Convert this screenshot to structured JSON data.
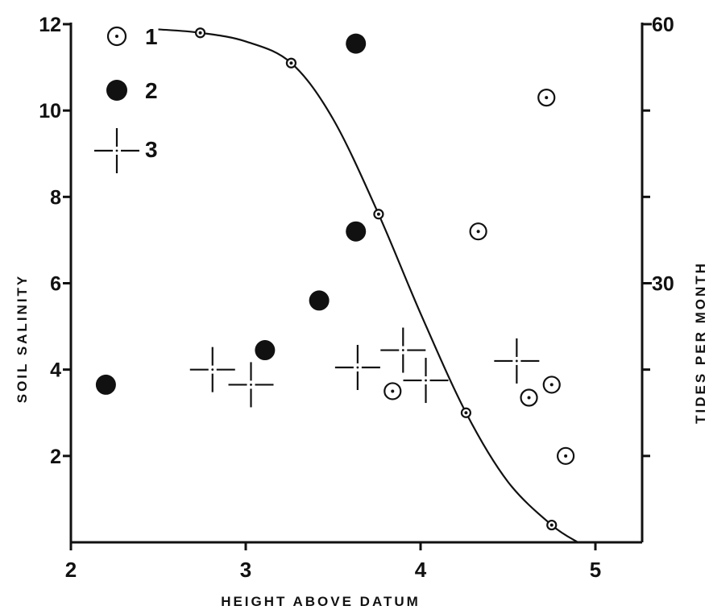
{
  "chart_data": {
    "type": "scatter",
    "xlabel": "HEIGHT ABOVE DATUM",
    "ylabel": "SOIL SALINITY",
    "y2label": "TIDES PER MONTH",
    "xlim": [
      2,
      5.25
    ],
    "ylim": [
      0,
      12
    ],
    "y2lim": [
      0,
      60
    ],
    "x_ticks": [
      2,
      3,
      4,
      5
    ],
    "y_ticks": [
      2,
      4,
      6,
      8,
      10,
      12
    ],
    "y2_ticks": [
      30,
      60
    ],
    "y2_minor_ticks": [
      10,
      20,
      40,
      50
    ],
    "grid": false,
    "legend_position": "top-left",
    "series": [
      {
        "name": "1",
        "marker": "circle-dot",
        "points": [
          [
            3.84,
            3.5
          ],
          [
            4.33,
            7.2
          ],
          [
            4.62,
            3.35
          ],
          [
            4.72,
            10.3
          ],
          [
            4.75,
            3.65
          ],
          [
            4.83,
            2.0
          ]
        ]
      },
      {
        "name": "2",
        "marker": "filled-circle",
        "points": [
          [
            2.2,
            3.65
          ],
          [
            3.11,
            4.45
          ],
          [
            3.42,
            5.6
          ],
          [
            3.63,
            7.2
          ],
          [
            3.63,
            11.55
          ]
        ]
      },
      {
        "name": "3",
        "marker": "broken-cross",
        "points": [
          [
            2.81,
            4.0
          ],
          [
            3.03,
            3.65
          ],
          [
            3.64,
            4.05
          ],
          [
            3.9,
            4.45
          ],
          [
            4.03,
            3.75
          ],
          [
            4.55,
            4.2
          ]
        ]
      },
      {
        "name": "tides per month",
        "type": "line",
        "axis": "y2",
        "marker": "small-circle-dot",
        "points": [
          [
            2.74,
            59.0
          ],
          [
            3.26,
            55.5
          ],
          [
            3.76,
            38.0
          ],
          [
            4.26,
            15.0
          ],
          [
            4.75,
            2.0
          ]
        ],
        "curve": [
          [
            2.5,
            59.4
          ],
          [
            2.74,
            59.0
          ],
          [
            3.0,
            58.0
          ],
          [
            3.26,
            55.5
          ],
          [
            3.5,
            49.0
          ],
          [
            3.76,
            38.0
          ],
          [
            4.0,
            26.5
          ],
          [
            4.26,
            15.0
          ],
          [
            4.5,
            7.0
          ],
          [
            4.75,
            2.0
          ],
          [
            4.9,
            0.0
          ]
        ]
      }
    ]
  }
}
